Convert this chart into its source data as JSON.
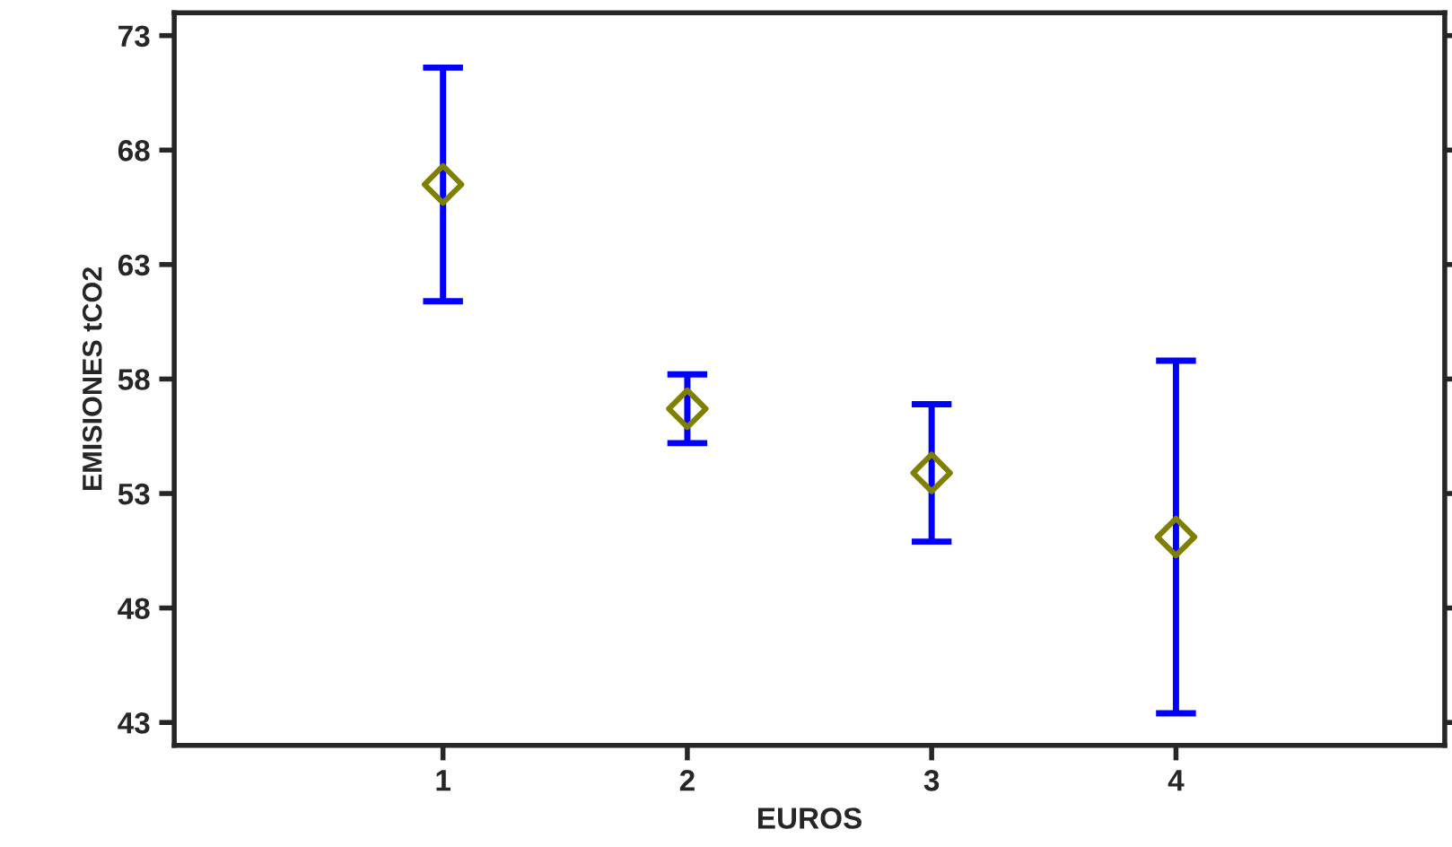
{
  "chart_data": {
    "type": "scatter",
    "xlabel": "EUROS",
    "ylabel": "EMISIONES tCO2",
    "x": [
      1,
      2,
      3,
      4
    ],
    "series": [
      {
        "color": "#808000",
        "values": [
          66.5,
          56.7,
          53.9,
          51.1
        ],
        "errors": [
          5.1,
          1.5,
          3.0,
          7.7
        ]
      }
    ],
    "marker": "diamond",
    "grid": false,
    "xlim": [
      -0.1,
      5.1
    ],
    "xticks": [
      1,
      2,
      3,
      4
    ],
    "ylim": [
      42,
      74
    ],
    "yticks": [
      43,
      48,
      53,
      58,
      63,
      68,
      73
    ]
  }
}
